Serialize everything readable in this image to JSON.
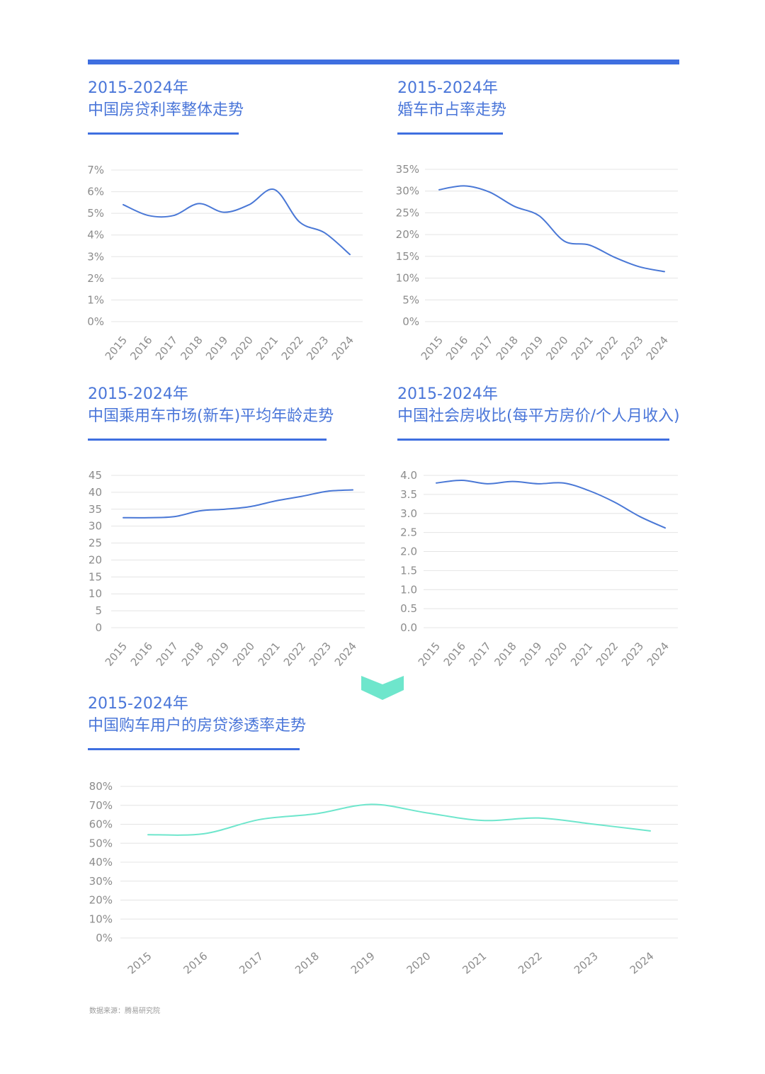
{
  "colors": {
    "accent": "#3f6fe0",
    "line_blue": "#4a78d6",
    "line_teal": "#6ee6cc",
    "divider": "#6ee6cc"
  },
  "source": "数据来源：腾易研究院",
  "chart_data": [
    {
      "type": "line",
      "title": "2015-2024年",
      "subtitle": "中国房贷利率整体走势",
      "categories": [
        "2015",
        "2016",
        "2017",
        "2018",
        "2019",
        "2020",
        "2021",
        "2022",
        "2023",
        "2024"
      ],
      "series": [
        {
          "values": [
            5.4,
            4.9,
            4.9,
            5.45,
            5.05,
            5.4,
            6.1,
            4.6,
            4.1,
            3.1
          ]
        }
      ],
      "ylim": [
        0,
        7
      ],
      "yticks": [
        "0%",
        "1%",
        "2%",
        "3%",
        "4%",
        "5%",
        "6%",
        "7%"
      ],
      "grid": true
    },
    {
      "type": "line",
      "title": "2015-2024年",
      "subtitle": "婚车市占率走势",
      "categories": [
        "2015",
        "2016",
        "2017",
        "2018",
        "2019",
        "2020",
        "2021",
        "2022",
        "2023",
        "2024"
      ],
      "series": [
        {
          "values": [
            30.3,
            31.2,
            29.8,
            26.5,
            24.3,
            18.5,
            17.6,
            14.8,
            12.6,
            11.5
          ]
        }
      ],
      "ylim": [
        0,
        35
      ],
      "yticks": [
        "0%",
        "5%",
        "10%",
        "15%",
        "20%",
        "25%",
        "30%",
        "35%"
      ],
      "grid": true
    },
    {
      "type": "line",
      "title": "2015-2024年",
      "subtitle": "中国乘用车市场(新车)平均年龄走势",
      "categories": [
        "2015",
        "2016",
        "2017",
        "2018",
        "2019",
        "2020",
        "2021",
        "2022",
        "2023",
        "2024"
      ],
      "series": [
        {
          "values": [
            32.5,
            32.5,
            32.8,
            34.5,
            35.0,
            35.8,
            37.5,
            38.8,
            40.3,
            40.7
          ]
        }
      ],
      "ylim": [
        0,
        45
      ],
      "yticks": [
        "0",
        "5",
        "10",
        "15",
        "20",
        "25",
        "30",
        "35",
        "40",
        "45"
      ],
      "grid": true
    },
    {
      "type": "line",
      "title": "2015-2024年",
      "subtitle": "中国社会房收比(每平方房价/个人月收入)",
      "categories": [
        "2015",
        "2016",
        "2017",
        "2018",
        "2019",
        "2020",
        "2021",
        "2022",
        "2023",
        "2024"
      ],
      "series": [
        {
          "values": [
            3.8,
            3.87,
            3.78,
            3.84,
            3.78,
            3.8,
            3.6,
            3.3,
            2.92,
            2.62
          ]
        }
      ],
      "ylim": [
        0,
        4
      ],
      "yticks": [
        "0.0",
        "0.5",
        "1.0",
        "1.5",
        "2.0",
        "2.5",
        "3.0",
        "3.5",
        "4.0"
      ],
      "grid": true
    },
    {
      "type": "line",
      "title": "2015-2024年",
      "subtitle": "中国购车用户的房贷渗透率走势",
      "categories": [
        "2015",
        "2016",
        "2017",
        "2018",
        "2019",
        "2020",
        "2021",
        "2022",
        "2023",
        "2024"
      ],
      "series": [
        {
          "values": [
            54.5,
            55.0,
            62.5,
            65.5,
            70.5,
            66.0,
            62.0,
            63.3,
            60.0,
            56.5
          ]
        }
      ],
      "ylim": [
        0,
        80
      ],
      "yticks": [
        "0%",
        "10%",
        "20%",
        "30%",
        "40%",
        "50%",
        "60%",
        "70%",
        "80%"
      ],
      "grid": true
    }
  ]
}
